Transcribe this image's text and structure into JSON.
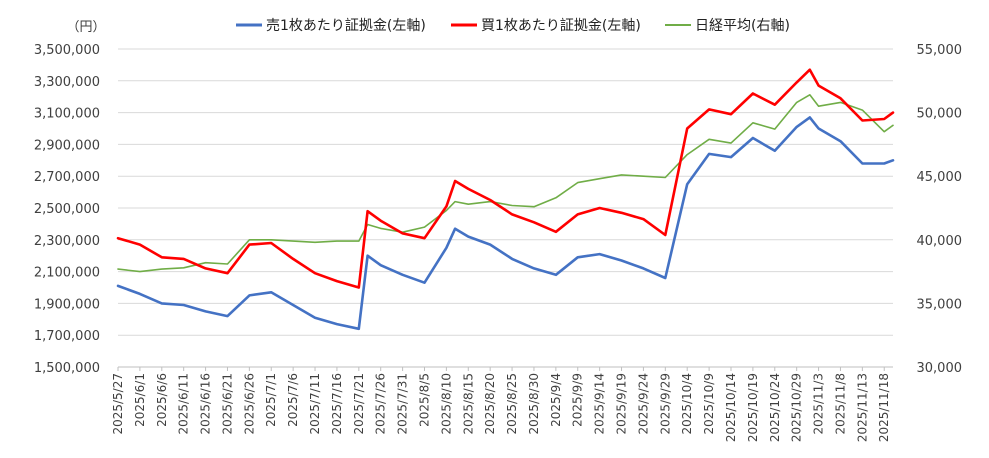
{
  "chart_data": {
    "type": "line",
    "unit_label": "（円）",
    "left_axis": {
      "ylim": [
        1500000,
        3500000
      ],
      "ticks": [
        1500000,
        1700000,
        1900000,
        2100000,
        2300000,
        2500000,
        2700000,
        2900000,
        3100000,
        3300000,
        3500000
      ],
      "tick_labels": [
        "1,500,000",
        "1,700,000",
        "1,900,000",
        "2,100,000",
        "2,300,000",
        "2,500,000",
        "2,700,000",
        "2,900,000",
        "3,100,000",
        "3,300,000",
        "3,500,000"
      ]
    },
    "right_axis": {
      "ylim": [
        30000,
        55000
      ],
      "ticks": [
        30000,
        35000,
        40000,
        45000,
        50000,
        55000
      ],
      "tick_labels": [
        "30,000",
        "35,000",
        "40,000",
        "45,000",
        "50,000",
        "55,000"
      ]
    },
    "x_tick_labels": [
      "2025/5/27",
      "2025/6/1",
      "2025/6/6",
      "2025/6/11",
      "2025/6/16",
      "2025/6/21",
      "2025/6/26",
      "2025/7/1",
      "2025/7/6",
      "2025/7/11",
      "2025/7/16",
      "2025/7/21",
      "2025/7/26",
      "2025/7/31",
      "2025/8/5",
      "2025/8/10",
      "2025/8/15",
      "2025/8/20",
      "2025/8/25",
      "2025/8/30",
      "2025/9/4",
      "2025/9/9",
      "2025/9/14",
      "2025/9/19",
      "2025/9/24",
      "2025/9/29",
      "2025/10/4",
      "2025/10/9",
      "2025/10/14",
      "2025/10/19",
      "2025/10/24",
      "2025/10/29",
      "2025/11/3",
      "2025/11/8",
      "2025/11/13",
      "2025/11/18"
    ],
    "x": [
      "2025/5/27",
      "2025/6/1",
      "2025/6/6",
      "2025/6/11",
      "2025/6/16",
      "2025/6/21",
      "2025/6/26",
      "2025/7/1",
      "2025/7/6",
      "2025/7/11",
      "2025/7/16",
      "2025/7/21",
      "2025/7/23",
      "2025/7/26",
      "2025/7/31",
      "2025/8/5",
      "2025/8/10",
      "2025/8/12",
      "2025/8/15",
      "2025/8/20",
      "2025/8/25",
      "2025/8/30",
      "2025/9/4",
      "2025/9/9",
      "2025/9/14",
      "2025/9/19",
      "2025/9/24",
      "2025/9/29",
      "2025/10/4",
      "2025/10/9",
      "2025/10/14",
      "2025/10/19",
      "2025/10/24",
      "2025/10/29",
      "2025/11/1",
      "2025/11/3",
      "2025/11/8",
      "2025/11/13",
      "2025/11/18",
      "2025/11/20"
    ],
    "series": [
      {
        "name": "売1枚あたり証拠金(左軸)",
        "axis": "left",
        "color": "#4472C4",
        "values": [
          2010000,
          1960000,
          1900000,
          1890000,
          1850000,
          1820000,
          1950000,
          1970000,
          1890000,
          1810000,
          1770000,
          1740000,
          2200000,
          2140000,
          2080000,
          2030000,
          2250000,
          2370000,
          2320000,
          2270000,
          2180000,
          2120000,
          2080000,
          2190000,
          2210000,
          2170000,
          2120000,
          2060000,
          2650000,
          2840000,
          2820000,
          2940000,
          2860000,
          3010000,
          3070000,
          3000000,
          2920000,
          2780000,
          2780000,
          2800000
        ]
      },
      {
        "name": "買1枚あたり証拠金(左軸)",
        "axis": "left",
        "color": "#FF0000",
        "values": [
          2310000,
          2270000,
          2190000,
          2180000,
          2120000,
          2090000,
          2270000,
          2280000,
          2180000,
          2090000,
          2040000,
          2000000,
          2480000,
          2420000,
          2340000,
          2310000,
          2510000,
          2670000,
          2620000,
          2550000,
          2460000,
          2410000,
          2350000,
          2460000,
          2500000,
          2470000,
          2430000,
          2330000,
          3000000,
          3120000,
          3090000,
          3220000,
          3150000,
          3290000,
          3370000,
          3270000,
          3190000,
          3050000,
          3060000,
          3100000
        ]
      },
      {
        "name": "日経平均(右軸)",
        "axis": "right",
        "color": "#70AD47",
        "values": [
          37700,
          37500,
          37700,
          37800,
          38200,
          38100,
          40000,
          40000,
          39900,
          39800,
          39900,
          39900,
          41200,
          40900,
          40600,
          41000,
          42300,
          43000,
          42800,
          43000,
          42700,
          42600,
          43300,
          44500,
          44800,
          45100,
          45000,
          44900,
          46700,
          47900,
          47600,
          49200,
          48700,
          50800,
          51400,
          50500,
          50800,
          50200,
          48500,
          49000
        ]
      }
    ],
    "legend_position": "top"
  }
}
